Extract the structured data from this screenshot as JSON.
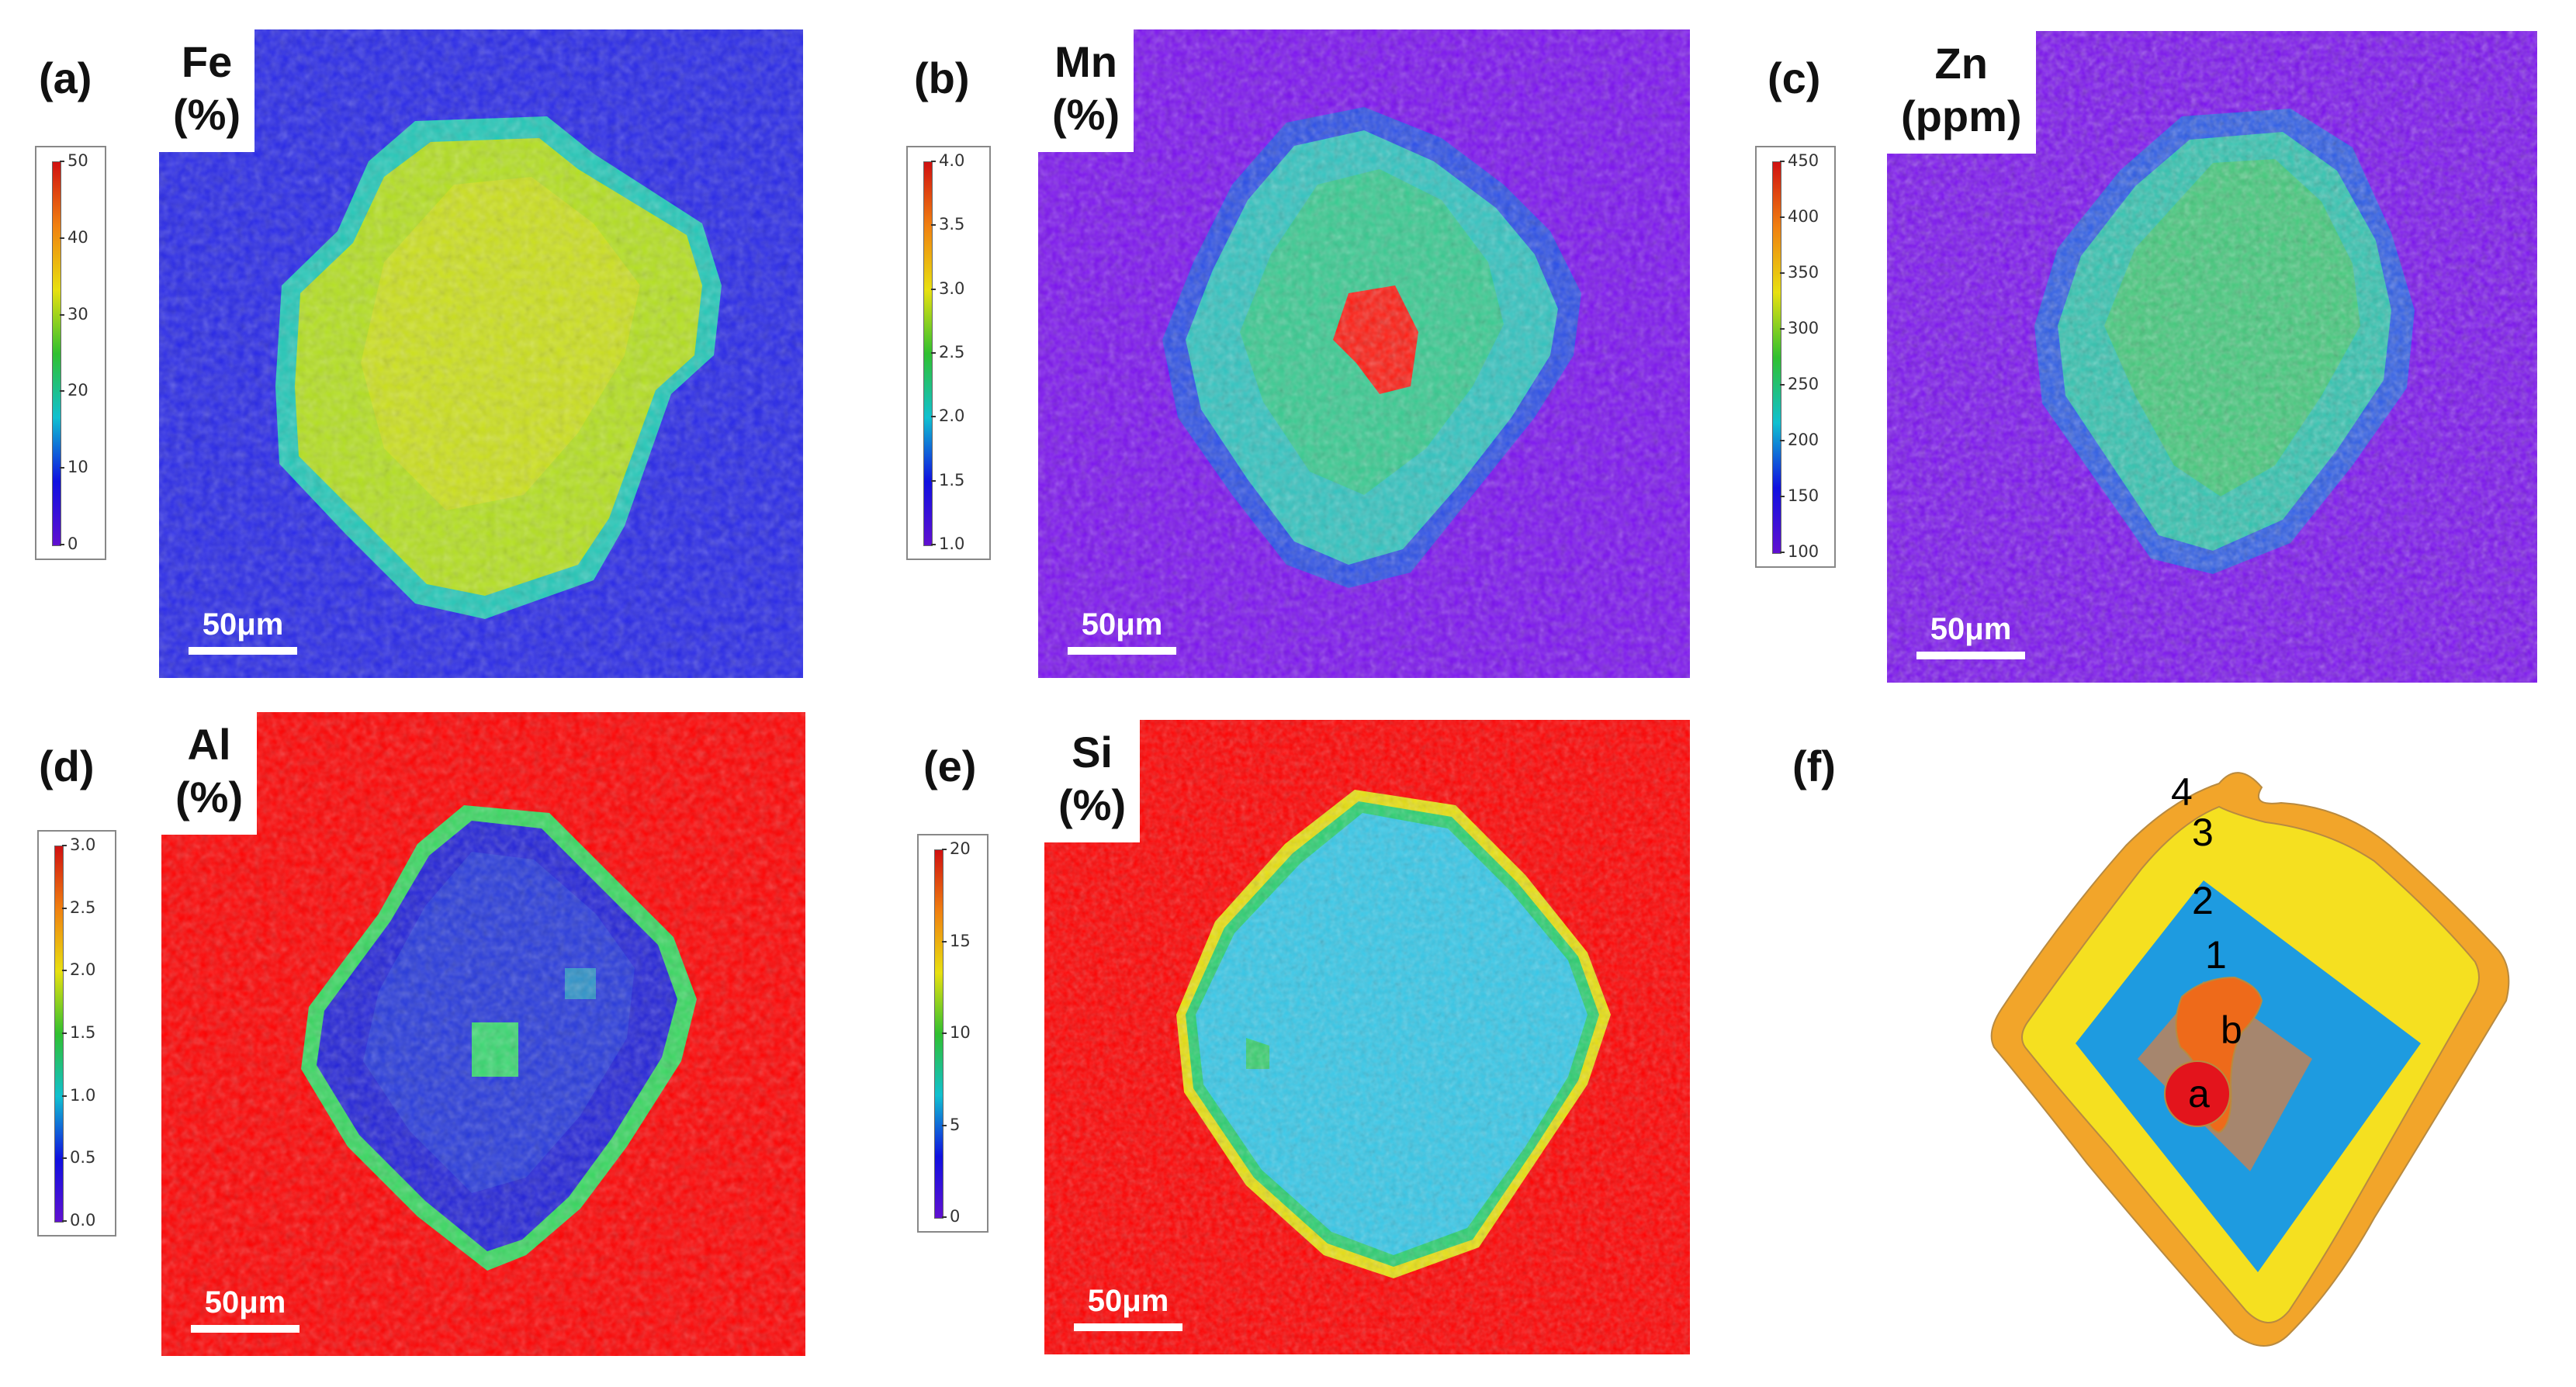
{
  "panels": [
    {
      "label": "(a)",
      "element": "Fe",
      "unit": "(%)",
      "scale": "50μm",
      "ticks": [
        "50",
        "40",
        "30",
        "20",
        "10",
        "0"
      ]
    },
    {
      "label": "(b)",
      "element": "Mn",
      "unit": "(%)",
      "scale": "50μm",
      "ticks": [
        "4.0",
        "3.5",
        "3.0",
        "2.5",
        "2.0",
        "1.5",
        "1.0"
      ]
    },
    {
      "label": "(c)",
      "element": "Zn",
      "unit": "(ppm)",
      "scale": "50μm",
      "ticks": [
        "450",
        "400",
        "350",
        "300",
        "250",
        "200",
        "150",
        "100"
      ]
    },
    {
      "label": "(d)",
      "element": "Al",
      "unit": "(%)",
      "scale": "50μm",
      "ticks": [
        "3.0",
        "2.5",
        "2.0",
        "1.5",
        "1.0",
        "0.5",
        "0.0"
      ]
    },
    {
      "label": "(e)",
      "element": "Si",
      "unit": "(%)",
      "scale": "50μm",
      "ticks": [
        "20",
        "15",
        "10",
        "5",
        "0"
      ]
    }
  ],
  "schematic": {
    "label": "(f)",
    "zones": [
      "4",
      "3",
      "2",
      "1",
      "b",
      "a"
    ],
    "colors": {
      "zone4": "#f2a52a",
      "zone3": "#f5e020",
      "zone2": "#1e9be0",
      "zone1": "#a6866e",
      "b": "#ee6a1a",
      "a": "#e3141c"
    }
  },
  "colors": {
    "blue": "#2222e0",
    "violet": "#7a10f0",
    "red": "#ff0000",
    "yellow_green": "#c8e020"
  }
}
